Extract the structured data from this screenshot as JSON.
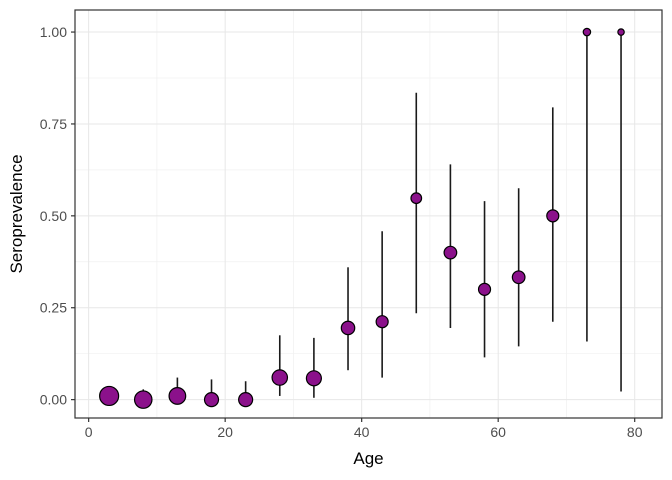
{
  "chart_data": {
    "type": "scatter",
    "subtype": "pointrange",
    "title": "",
    "xlabel": "Age",
    "ylabel": "Seroprevalence",
    "xlim": [
      -2,
      84
    ],
    "ylim": [
      -0.05,
      1.06
    ],
    "x_ticks": [
      0,
      20,
      40,
      60,
      80
    ],
    "x_tick_labels": [
      "0",
      "20",
      "40",
      "60",
      "80"
    ],
    "y_ticks": [
      0,
      0.25,
      0.5,
      0.75,
      1.0
    ],
    "y_tick_labels": [
      "0.00",
      "0.25",
      "0.50",
      "0.75",
      "1.00"
    ],
    "x_minor_gridlines": [
      10,
      30,
      50,
      70
    ],
    "y_minor_gridlines": [
      0.125,
      0.375,
      0.625,
      0.875
    ],
    "grid": true,
    "legend": "none",
    "colors": {
      "point_fill": "#8B118B",
      "point_stroke": "#000000",
      "errorbar": "#1a1a1a",
      "panel_border": "#333333",
      "grid_major": "#e7e7e7",
      "grid_minor": "#f0f0f0",
      "tick_label": "#4d4d4d",
      "axis_title": "#000000",
      "tick_mark": "#333333",
      "background": "#ffffff"
    },
    "points": [
      {
        "age": 3,
        "value": 0.01,
        "lo": 0.0,
        "hi": 0.035,
        "r": 9.5
      },
      {
        "age": 8,
        "value": 0.0,
        "lo": 0.0,
        "hi": 0.028,
        "r": 8.7
      },
      {
        "age": 13,
        "value": 0.01,
        "lo": 0.0,
        "hi": 0.06,
        "r": 8.3
      },
      {
        "age": 18,
        "value": 0.0,
        "lo": 0.0,
        "hi": 0.055,
        "r": 7.0
      },
      {
        "age": 23,
        "value": 0.0,
        "lo": 0.0,
        "hi": 0.05,
        "r": 7.0
      },
      {
        "age": 28,
        "value": 0.06,
        "lo": 0.01,
        "hi": 0.175,
        "r": 7.7
      },
      {
        "age": 33,
        "value": 0.058,
        "lo": 0.005,
        "hi": 0.168,
        "r": 7.5
      },
      {
        "age": 38,
        "value": 0.195,
        "lo": 0.08,
        "hi": 0.36,
        "r": 6.7
      },
      {
        "age": 43,
        "value": 0.212,
        "lo": 0.06,
        "hi": 0.458,
        "r": 6.0
      },
      {
        "age": 48,
        "value": 0.548,
        "lo": 0.235,
        "hi": 0.835,
        "r": 5.3
      },
      {
        "age": 53,
        "value": 0.4,
        "lo": 0.195,
        "hi": 0.64,
        "r": 6.3
      },
      {
        "age": 58,
        "value": 0.3,
        "lo": 0.115,
        "hi": 0.54,
        "r": 6.0
      },
      {
        "age": 63,
        "value": 0.333,
        "lo": 0.145,
        "hi": 0.575,
        "r": 6.3
      },
      {
        "age": 68,
        "value": 0.5,
        "lo": 0.212,
        "hi": 0.795,
        "r": 6.0
      },
      {
        "age": 73,
        "value": 1.0,
        "lo": 0.158,
        "hi": 1.0,
        "r": 3.7
      },
      {
        "age": 78,
        "value": 1.0,
        "lo": 0.022,
        "hi": 1.0,
        "r": 3.2
      }
    ]
  }
}
